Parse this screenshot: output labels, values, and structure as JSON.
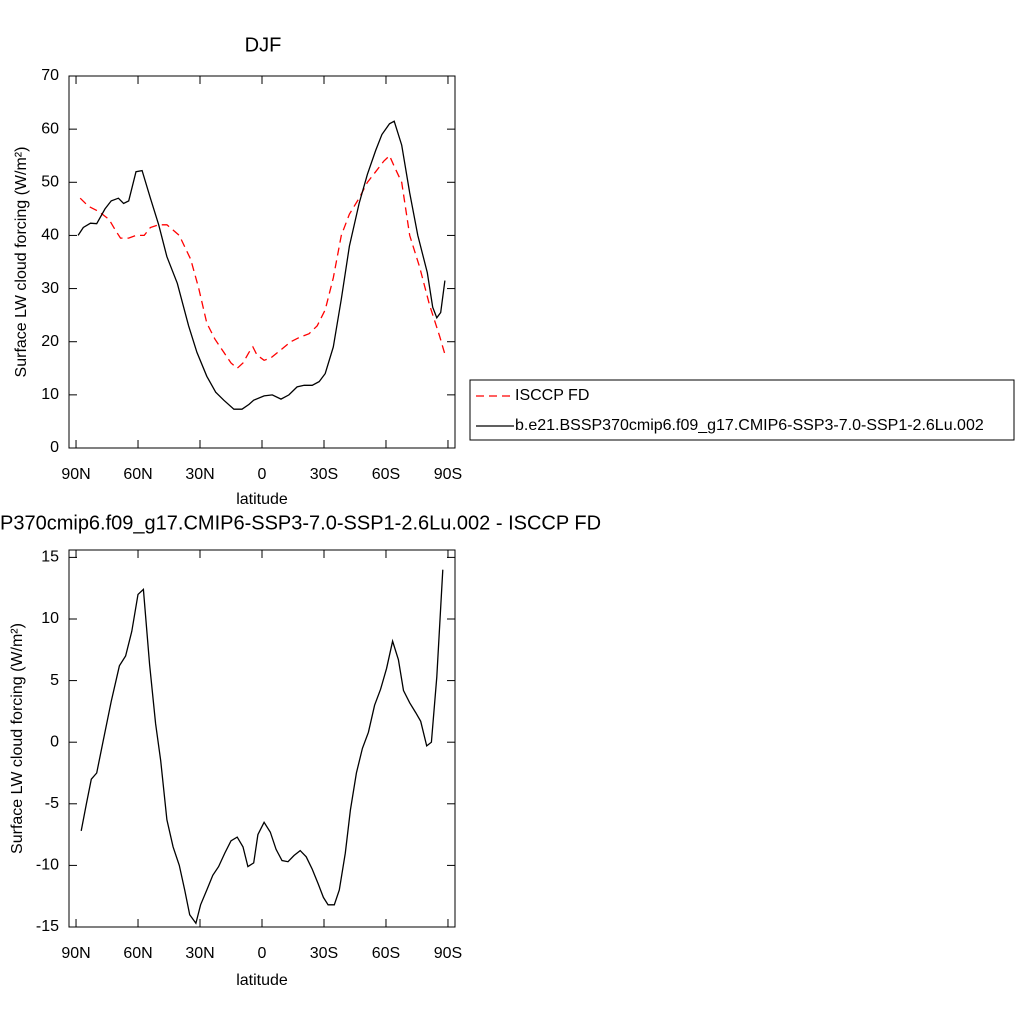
{
  "chart_data": [
    {
      "type": "line",
      "title": "DJF",
      "xlabel": "latitude",
      "ylabel": "Surface LW cloud forcing (W/m²)",
      "xlim": [
        93.4,
        -93.4
      ],
      "xticks": [
        {
          "value": 90,
          "label": "90N"
        },
        {
          "value": 60,
          "label": "60N"
        },
        {
          "value": 30,
          "label": "30N"
        },
        0,
        {
          "value": -30,
          "label": "30S"
        },
        {
          "value": -60,
          "label": "60S"
        },
        {
          "value": -90,
          "label": "90S"
        }
      ],
      "ylim": [
        0,
        70
      ],
      "yticks": [
        0,
        10,
        20,
        30,
        40,
        50,
        60,
        70
      ],
      "legend": "right",
      "series": [
        {
          "name": "ISCCP FD",
          "color": "#ff0000",
          "dash": true,
          "x": [
            88,
            84,
            79,
            74,
            71,
            68.5,
            64.5,
            61,
            57,
            54,
            50,
            46,
            40,
            34.5,
            30.6,
            26.7,
            22.8,
            18.5,
            15,
            12,
            9.2,
            6.3,
            4.4,
            2.4,
            -1,
            -4.4,
            -9.2,
            -14,
            -18,
            -22.8,
            -26.7,
            -30.6,
            -34.5,
            -38.4,
            -42.3,
            -47,
            -51,
            -55,
            -59,
            -61.7,
            -64,
            -67.6,
            -71.5,
            -76.3,
            -81,
            -86,
            -89
          ],
          "values": [
            47,
            45.5,
            44.5,
            43,
            41,
            39.5,
            39.5,
            40,
            40,
            41.5,
            42,
            42,
            40,
            35.5,
            30,
            23.5,
            20.5,
            18,
            16,
            15,
            16,
            18,
            19,
            17.5,
            16.5,
            17,
            18.5,
            20,
            20.8,
            21.5,
            23,
            26,
            32,
            40,
            44,
            47,
            50,
            52,
            54,
            55,
            53,
            50,
            40,
            34,
            27,
            21,
            17
          ]
        },
        {
          "name": "b.e21.BSSP370cmip6.f09_g17.CMIP6-SSP3-7.0-SSP1-2.6Lu.002",
          "color": "#000000",
          "dash": false,
          "x": [
            89,
            86.5,
            83,
            80,
            76,
            73,
            69.5,
            67,
            64.5,
            61,
            58,
            54,
            50,
            46,
            41,
            35.5,
            31.5,
            26.7,
            22.4,
            18.5,
            13.6,
            9.7,
            6.3,
            4,
            -1,
            -5,
            -9.2,
            -13,
            -17,
            -20.4,
            -24.3,
            -27.7,
            -30.6,
            -34.5,
            -38.4,
            -42.3,
            -47,
            -51,
            -55,
            -58,
            -61.7,
            -64,
            -67.6,
            -71.5,
            -75.4,
            -80,
            -82.6,
            -84.6,
            -86.5,
            -88.5
          ],
          "values": [
            40,
            41.5,
            42.3,
            42.2,
            45,
            46.5,
            47,
            46,
            46.5,
            52,
            52.2,
            47,
            42,
            36,
            31,
            23,
            18,
            13.5,
            10.5,
            9,
            7.3,
            7.3,
            8.2,
            9,
            9.8,
            10,
            9.2,
            10,
            11.5,
            11.8,
            11.8,
            12.5,
            14,
            19,
            28,
            38,
            46,
            51.5,
            56,
            59,
            61,
            61.5,
            57,
            48,
            40,
            33,
            26.5,
            24.5,
            25.5,
            31.5
          ]
        }
      ]
    },
    {
      "type": "line",
      "title": "P370cmip6.f09_g17.CMIP6-SSP3-7.0-SSP1-2.6Lu.002 - ISCCP FD",
      "xlabel": "latitude",
      "ylabel": "Surface LW cloud forcing (W/m²)",
      "xlim": [
        93.4,
        -93.4
      ],
      "xticks": [
        {
          "value": 90,
          "label": "90N"
        },
        {
          "value": 60,
          "label": "60N"
        },
        {
          "value": 30,
          "label": "30N"
        },
        0,
        {
          "value": -30,
          "label": "30S"
        },
        {
          "value": -60,
          "label": "60S"
        },
        {
          "value": -90,
          "label": "90S"
        }
      ],
      "ylim": [
        -15,
        15.6
      ],
      "yticks": [
        -15,
        -10,
        -5,
        0,
        5,
        10,
        15
      ],
      "series": [
        {
          "color": "#000000",
          "dash": false,
          "x": [
            87.5,
            85,
            82.6,
            80,
            77,
            73,
            69,
            66,
            63,
            60,
            57.4,
            54.4,
            51.5,
            49,
            46,
            43,
            40,
            37.4,
            35,
            32,
            29.7,
            26.7,
            23.8,
            21,
            18,
            15,
            12,
            9.2,
            6.8,
            4,
            2,
            -1,
            -4,
            -6.8,
            -9.7,
            -12.6,
            -15.5,
            -18.5,
            -21.4,
            -24.3,
            -27.2,
            -29.7,
            -32,
            -35,
            -37.4,
            -40.3,
            -42.8,
            -45.7,
            -48.6,
            -51.5,
            -54.5,
            -57.4,
            -60.3,
            -63.2,
            -66,
            -68.5,
            -71.5,
            -74.4,
            -76.8,
            -79.7,
            -82,
            -84.6,
            -87.5
          ],
          "values": [
            -7.2,
            -5,
            -3,
            -2.5,
            0,
            3.3,
            6.2,
            7,
            9,
            12,
            12.4,
            6.3,
            1.5,
            -1.5,
            -6.3,
            -8.5,
            -10,
            -12,
            -14,
            -14.7,
            -13.2,
            -12,
            -10.8,
            -10.1,
            -9,
            -8,
            -7.7,
            -8.5,
            -10.1,
            -9.8,
            -7.5,
            -6.5,
            -7.3,
            -8.7,
            -9.6,
            -9.7,
            -9.2,
            -8.8,
            -9.3,
            -10.3,
            -11.5,
            -12.6,
            -13.2,
            -13.2,
            -12,
            -9,
            -5.5,
            -2.5,
            -0.5,
            0.8,
            3,
            4.3,
            6,
            8.2,
            6.7,
            4.2,
            3.2,
            2.4,
            1.7,
            -0.3,
            0,
            5.3,
            14
          ]
        }
      ]
    }
  ]
}
